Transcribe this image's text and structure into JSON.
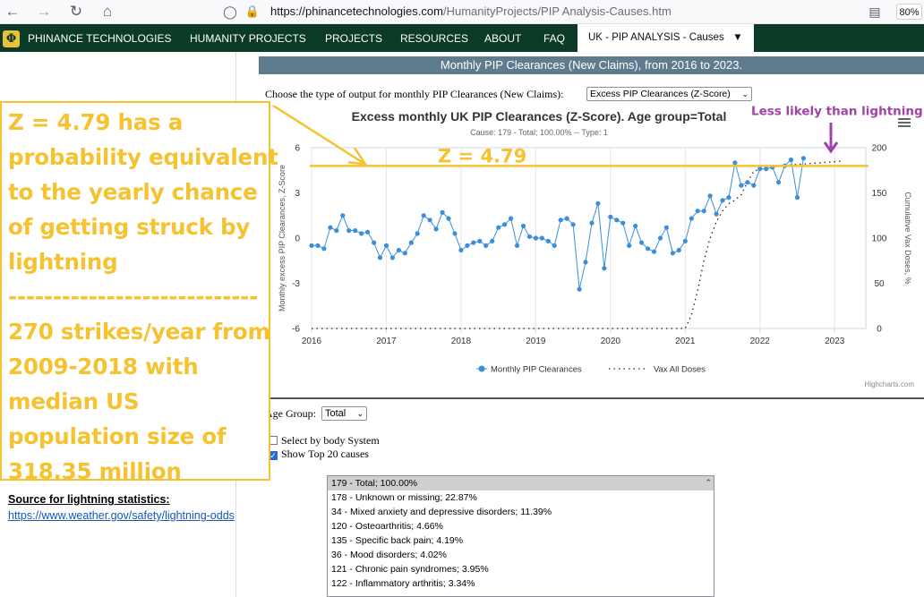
{
  "browser": {
    "url_host": "https://phinancetechnologies.com",
    "url_path": "/HumanityProjects/PIP Analysis-Causes.htm",
    "zoom": "80%"
  },
  "nav": {
    "brand": "PHINANCE TECHNOLOGIES",
    "items": [
      "HUMANITY PROJECTS",
      "PROJECTS",
      "RESOURCES",
      "ABOUT",
      "FAQ"
    ],
    "active": "UK - PIP ANALYSIS - Causes"
  },
  "banner": "Monthly PIP Clearances (New Claims), from 2016 to 2023.",
  "output_prompt": "Choose the type of output for monthly PIP Clearances (New Claims):",
  "output_select_value": "Excess PIP Clearances (Z-Score)",
  "chart_data": {
    "type": "line",
    "title": "Excess monthly UK PIP Clearances (Z-Score). Age group=Total",
    "subtitle": "Cause: 179 - Total; 100.00% -- Type: 1",
    "ylabel": "Monthly excess PIP Clearances, Z-Score",
    "y2label": "Cumulative Vax Doses, %",
    "ylim": [
      -6,
      6
    ],
    "y_ticks": [
      -6,
      -3,
      0,
      3,
      6
    ],
    "y2lim": [
      0,
      200
    ],
    "y2_ticks": [
      0,
      50,
      100,
      150,
      200
    ],
    "x_range": [
      "2016-01",
      "2023-06"
    ],
    "x_ticks": [
      "2016",
      "2017",
      "2018",
      "2019",
      "2020",
      "2021",
      "2022",
      "2023"
    ],
    "series": [
      {
        "name": "Monthly PIP Clearances",
        "x_start": "2016-01",
        "values": [
          -0.5,
          -0.5,
          -0.7,
          0.7,
          0.5,
          1.5,
          0.5,
          0.5,
          0.3,
          0.4,
          -0.3,
          -1.3,
          -0.5,
          -1.3,
          -0.8,
          -1.0,
          -0.3,
          0.3,
          1.5,
          1.2,
          0.6,
          1.7,
          1.3,
          0.3,
          -0.8,
          -0.5,
          -0.3,
          -0.2,
          -0.5,
          -0.2,
          0.7,
          0.9,
          1.3,
          -0.5,
          0.8,
          0.1,
          0.0,
          0.0,
          -0.2,
          -0.5,
          1.2,
          1.3,
          0.9,
          -3.4,
          -1.6,
          1.0,
          2.3,
          -2.0,
          1.4,
          1.2,
          1.0,
          -0.5,
          0.8,
          -0.3,
          -0.7,
          -0.9,
          0.0,
          0.7,
          -1.0,
          -0.8,
          -0.2,
          1.3,
          1.8,
          1.8,
          2.8,
          1.6,
          2.5,
          2.7,
          5.0,
          3.5,
          3.7,
          3.5,
          4.6,
          4.6,
          4.7,
          3.7,
          4.8,
          5.2,
          2.7,
          5.3
        ]
      },
      {
        "name": "Vax All Doses",
        "points": [
          [
            "2021-01",
            0
          ],
          [
            "2021-02",
            15
          ],
          [
            "2021-03",
            42
          ],
          [
            "2021-04",
            75
          ],
          [
            "2021-05",
            100
          ],
          [
            "2021-06",
            118
          ],
          [
            "2021-07",
            130
          ],
          [
            "2021-08",
            138
          ],
          [
            "2021-09",
            142
          ],
          [
            "2021-10",
            148
          ],
          [
            "2021-11",
            162
          ],
          [
            "2021-12",
            174
          ],
          [
            "2022-02",
            178
          ],
          [
            "2022-06",
            181
          ],
          [
            "2022-10",
            183
          ],
          [
            "2023-02",
            185
          ]
        ]
      }
    ],
    "legend": [
      "Monthly PIP Clearances",
      "Vax All Doses"
    ],
    "legend_position": "bottom",
    "credit": "Highcharts.com",
    "reference_line": {
      "value": 4.79,
      "label": "Z = 4.79",
      "color": "#f5c230"
    },
    "pointer_label": "Less likely than lightning",
    "pointer_color": "#a142a8",
    "point_color": "#3b8fd9",
    "grid": "vertical"
  },
  "filters": {
    "age_label": "Age Group:",
    "age_value": "Total",
    "check1": "Select by body System",
    "check2": "Show Top 20 causes"
  },
  "causes": [
    "179 - Total; 100.00%",
    "178 - Unknown or missing; 22.87%",
    "34 - Mixed anxiety and depressive disorders; 11.39%",
    "120 - Osteoarthritis; 4.66%",
    "135 - Specific back pain; 4.19%",
    "36 - Mood disorders; 4.02%",
    "121 - Chronic pain syndromes; 3.95%",
    "122 - Inflammatory arthritis; 3.34%"
  ],
  "annotation": {
    "lines": [
      "Z = 4.79 has a",
      "probability equivalent",
      "to the yearly chance",
      "of getting struck by",
      "lightning",
      "----------------------------",
      "270 strikes/year from",
      "2009-2018 with",
      "median US",
      "population size of",
      "318.35 million"
    ],
    "color": "#f5c230"
  },
  "source": {
    "label": "Source for lightning statistics:",
    "link": "https://www.weather.gov/safety/lightning-odds"
  }
}
